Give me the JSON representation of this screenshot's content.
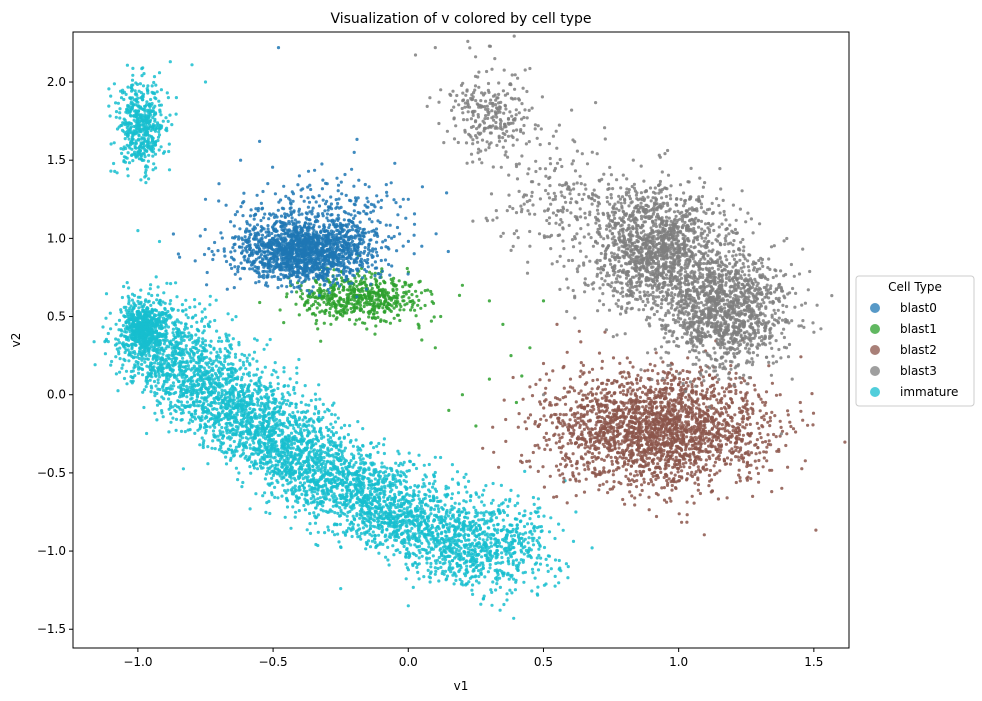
{
  "chart_data": {
    "type": "scatter",
    "title": "Visualization of v colored by cell type",
    "xlabel": "v1",
    "ylabel": "v2",
    "xlim": [
      -1.24,
      1.63
    ],
    "ylim": [
      -1.62,
      2.32
    ],
    "x_ticks": [
      -1.0,
      -0.5,
      0.0,
      0.5,
      1.0,
      1.5
    ],
    "x_tick_labels": [
      "−1.0",
      "−0.5",
      "0.0",
      "0.5",
      "1.0",
      "1.5"
    ],
    "y_ticks": [
      -1.5,
      -1.0,
      -0.5,
      0.0,
      0.5,
      1.0,
      1.5,
      2.0
    ],
    "y_tick_labels": [
      "−1.5",
      "−1.0",
      "−0.5",
      "0.0",
      "0.5",
      "1.0",
      "1.5",
      "2.0"
    ],
    "grid": false,
    "legend": {
      "title": "Cell Type",
      "placement": "center-right outside",
      "entries": [
        "blast0",
        "blast1",
        "blast2",
        "blast3",
        "immature"
      ]
    },
    "series": [
      {
        "name": "blast0",
        "color": "#1f77b4",
        "clusters": [
          {
            "cx": -0.38,
            "cy": 0.92,
            "sx": 0.13,
            "sy": 0.1,
            "n": 1600
          },
          {
            "cx": -0.3,
            "cy": 1.15,
            "sx": 0.16,
            "sy": 0.14,
            "n": 250
          }
        ],
        "points": [
          [
            -0.48,
            2.22
          ],
          [
            -0.55,
            1.62
          ],
          [
            -0.05,
            1.48
          ],
          [
            -0.62,
            1.5
          ],
          [
            -0.2,
            1.55
          ],
          [
            -0.3,
            1.35
          ],
          [
            -0.75,
            1.25
          ],
          [
            -0.85,
            0.9
          ],
          [
            0.0,
            1.25
          ],
          [
            -0.7,
            1.35
          ],
          [
            0.05,
            0.95
          ]
        ]
      },
      {
        "name": "blast1",
        "color": "#2ca02c",
        "clusters": [
          {
            "cx": -0.18,
            "cy": 0.62,
            "sx": 0.12,
            "sy": 0.08,
            "n": 550
          }
        ],
        "points": [
          [
            0.2,
            0.7
          ],
          [
            0.12,
            0.5
          ],
          [
            0.1,
            0.3
          ],
          [
            0.3,
            0.1
          ],
          [
            0.35,
            0.45
          ],
          [
            0.4,
            -0.05
          ],
          [
            0.2,
            0.0
          ],
          [
            0.45,
            0.3
          ],
          [
            0.3,
            0.6
          ],
          [
            0.25,
            -0.2
          ],
          [
            0.5,
            0.6
          ],
          [
            0.05,
            0.35
          ],
          [
            0.38,
            0.25
          ],
          [
            0.15,
            -0.1
          ],
          [
            0.42,
            0.12
          ]
        ]
      },
      {
        "name": "blast2",
        "color": "#8c564b",
        "clusters": [
          {
            "cx": 0.92,
            "cy": -0.22,
            "sx": 0.2,
            "sy": 0.18,
            "n": 2300
          }
        ],
        "points": [
          [
            0.5,
            0.2
          ],
          [
            0.55,
            0.45
          ],
          [
            0.45,
            0.05
          ],
          [
            0.48,
            -0.2
          ],
          [
            1.4,
            -0.25
          ],
          [
            1.45,
            -0.05
          ],
          [
            0.8,
            -0.7
          ],
          [
            1.05,
            -0.65
          ],
          [
            0.6,
            0.1
          ]
        ]
      },
      {
        "name": "blast3",
        "color": "#7f7f7f",
        "clusters": [
          {
            "cx": 0.92,
            "cy": 0.95,
            "sx": 0.13,
            "sy": 0.2,
            "n": 1500
          },
          {
            "cx": 1.17,
            "cy": 0.55,
            "sx": 0.12,
            "sy": 0.18,
            "n": 1300
          },
          {
            "cx": 0.3,
            "cy": 1.8,
            "sx": 0.08,
            "sy": 0.15,
            "n": 260
          },
          {
            "cx": 0.55,
            "cy": 1.3,
            "sx": 0.12,
            "sy": 0.2,
            "n": 200
          }
        ],
        "points": [
          [
            0.22,
            2.26
          ],
          [
            0.3,
            2.23
          ],
          [
            0.1,
            2.22
          ],
          [
            0.32,
            2.15
          ],
          [
            0.12,
            1.95
          ],
          [
            0.08,
            1.9
          ],
          [
            1.5,
            0.4
          ],
          [
            1.38,
            -0.25
          ],
          [
            1.42,
            0.1
          ],
          [
            1.35,
            0.75
          ],
          [
            0.5,
            0.0
          ],
          [
            0.45,
            0.95
          ]
        ]
      },
      {
        "name": "immature",
        "color": "#17becf",
        "clusters": [
          {
            "cx": -0.99,
            "cy": 1.72,
            "sx": 0.045,
            "sy": 0.14,
            "n": 500
          },
          {
            "cx": -0.98,
            "cy": 0.42,
            "sx": 0.04,
            "sy": 0.08,
            "n": 600
          }
        ],
        "arcs": [
          {
            "path": [
              [
                -0.98,
                0.45
              ],
              [
                -0.8,
                0.2
              ],
              [
                -0.55,
                -0.15
              ],
              [
                -0.35,
                -0.45
              ],
              [
                -0.15,
                -0.65
              ],
              [
                0.05,
                -0.8
              ],
              [
                0.25,
                -0.92
              ],
              [
                0.45,
                -1.0
              ]
            ],
            "width": 0.09,
            "n": 3800
          },
          {
            "path": [
              [
                -0.98,
                0.2
              ],
              [
                -0.75,
                -0.1
              ],
              [
                -0.55,
                -0.35
              ],
              [
                -0.3,
                -0.6
              ],
              [
                -0.05,
                -0.85
              ],
              [
                0.15,
                -1.05
              ],
              [
                0.3,
                -1.15
              ]
            ],
            "width": 0.06,
            "n": 900
          }
        ],
        "points": [
          [
            -0.88,
            2.13
          ],
          [
            -0.8,
            2.11
          ],
          [
            -0.75,
            2.0
          ],
          [
            -1.1,
            1.43
          ],
          [
            -1.0,
            1.05
          ],
          [
            -0.92,
            0.98
          ],
          [
            0.39,
            -1.43
          ],
          [
            0.68,
            -0.98
          ],
          [
            0.62,
            -0.75
          ],
          [
            0.58,
            -0.55
          ],
          [
            0.0,
            -1.35
          ],
          [
            -0.25,
            -1.24
          ],
          [
            0.1,
            -0.4
          ]
        ]
      }
    ]
  }
}
